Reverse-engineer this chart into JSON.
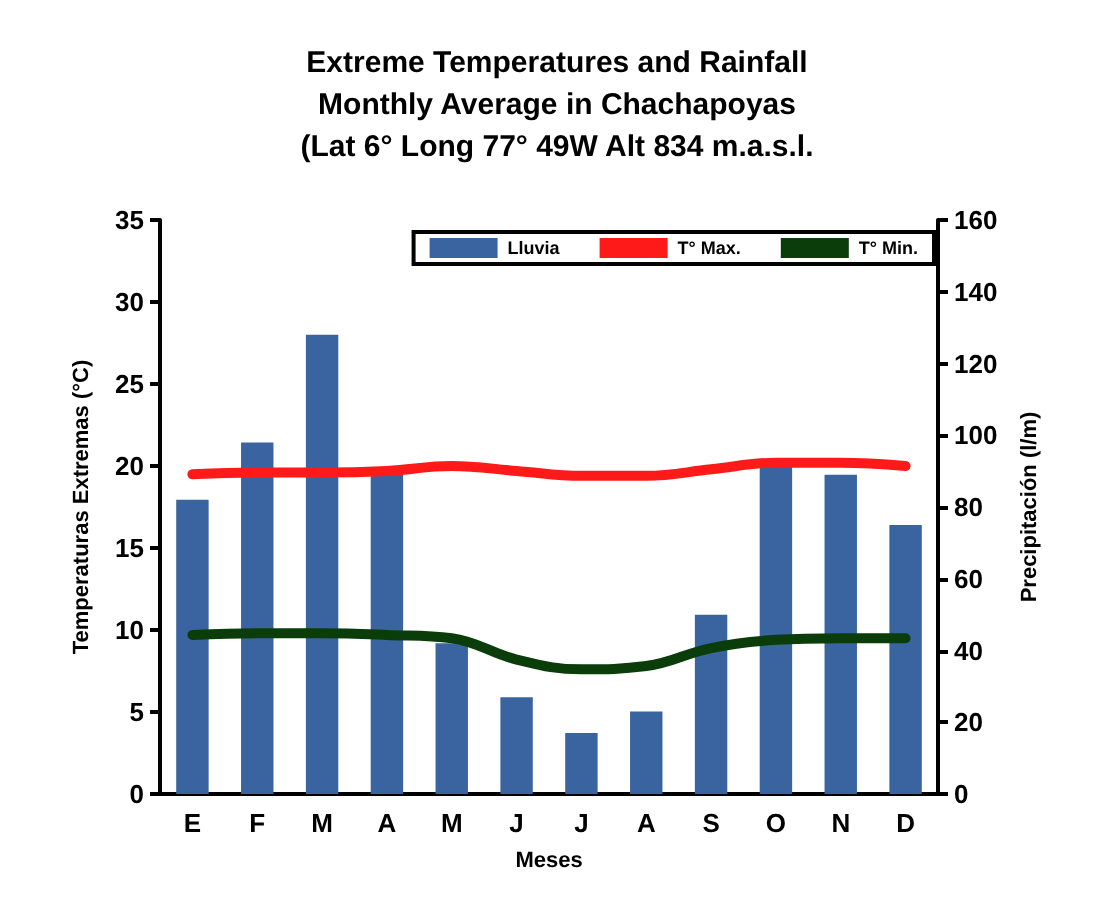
{
  "chart_data": {
    "type": "bar",
    "title": "Extreme Temperatures and Rainfall\nMonthly Average in Chachapoyas\n(Lat 6° Long 77° 49W Alt 834 m.a.s.l.",
    "xlabel": "Meses",
    "ylabel": "Temperaturas Extremas (°C)",
    "y2label": "Precipitación (l/m)",
    "categories": [
      "E",
      "F",
      "M",
      "A",
      "M",
      "J",
      "J",
      "A",
      "S",
      "O",
      "N",
      "D"
    ],
    "series": [
      {
        "name": "Lluvia",
        "axis": "y2",
        "color": "#3a64a0",
        "values": [
          82,
          98,
          128,
          90,
          42,
          27,
          17,
          23,
          50,
          92,
          89,
          75
        ]
      },
      {
        "name": "T° Max.",
        "type": "line",
        "color": "#ff1a1a",
        "values": [
          19.5,
          19.6,
          19.6,
          19.7,
          20,
          19.7,
          19.4,
          19.4,
          19.8,
          20.2,
          20.2,
          20
        ]
      },
      {
        "name": "T° Min.",
        "type": "line",
        "color": "#0a3d0a",
        "values": [
          9.7,
          9.8,
          9.8,
          9.7,
          9.5,
          8.2,
          7.6,
          7.8,
          8.9,
          9.4,
          9.5,
          9.5
        ]
      }
    ],
    "ylim": [
      0,
      35
    ],
    "yticks": [
      0,
      5,
      10,
      15,
      20,
      25,
      30,
      35
    ],
    "y2lim": [
      0,
      160
    ],
    "y2ticks": [
      0,
      20,
      40,
      60,
      80,
      100,
      120,
      140,
      160
    ],
    "grid": false,
    "legend": "top right",
    "marker": "none",
    "line_style": "solid"
  }
}
